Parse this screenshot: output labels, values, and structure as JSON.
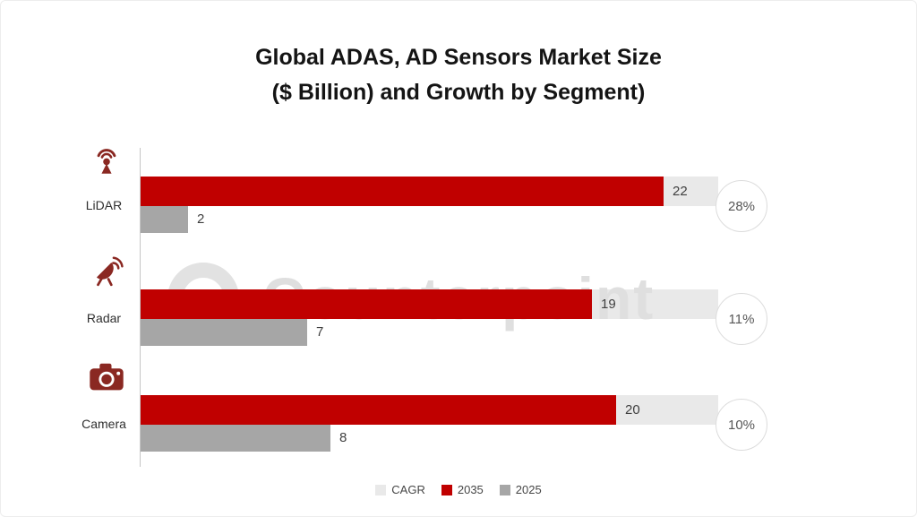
{
  "title": {
    "line1": "Global ADAS, AD Sensors Market Size",
    "line2": "($ Billion) and Growth by Segment)"
  },
  "watermark": {
    "text": "Counterpoint"
  },
  "legend": [
    {
      "label": "CAGR",
      "color": "#e9e9e9"
    },
    {
      "label": "2035",
      "color": "#c00000"
    },
    {
      "label": "2025",
      "color": "#a6a6a6"
    }
  ],
  "colors": {
    "bar_2035": "#c00000",
    "bar_2025": "#a6a6a6",
    "cagr_track": "#e9e9e9",
    "icon_maroon": "#8a2822",
    "value_text": "#3f3f3f",
    "cagr_text": "#575757"
  },
  "chart_data": {
    "type": "bar",
    "orientation": "horizontal",
    "title": "Global ADAS, AD Sensors Market Size ($ Billion) and Growth by Segment)",
    "xlabel": "",
    "ylabel": "",
    "categories": [
      "LiDAR",
      "Radar",
      "Camera"
    ],
    "series": [
      {
        "name": "2035",
        "color": "#c00000",
        "values": [
          22,
          19,
          20
        ]
      },
      {
        "name": "2025",
        "color": "#a6a6a6",
        "values": [
          2,
          7,
          8
        ]
      }
    ],
    "cagr": [
      "28%",
      "11%",
      "10%"
    ],
    "icons": [
      "lidar-icon",
      "radar-icon",
      "camera-icon"
    ],
    "xlim": [
      0,
      24.3
    ],
    "grid": false,
    "legend_position": "bottom",
    "legend_entries": [
      "CAGR",
      "2035",
      "2025"
    ]
  }
}
